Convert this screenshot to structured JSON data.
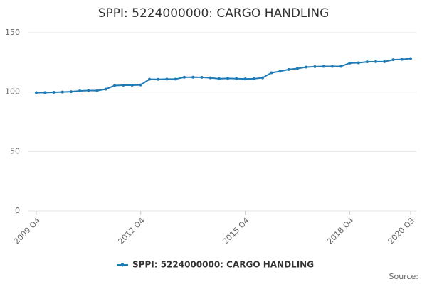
{
  "chart_data": {
    "type": "line",
    "title": "SPPI: 5224000000: CARGO HANDLING",
    "categories": [
      "2009 Q4",
      null,
      null,
      null,
      null,
      null,
      null,
      null,
      null,
      null,
      null,
      null,
      "2012 Q4",
      null,
      null,
      null,
      null,
      null,
      null,
      null,
      null,
      null,
      null,
      null,
      "2015 Q4",
      null,
      null,
      null,
      null,
      null,
      null,
      null,
      null,
      null,
      null,
      null,
      "2018 Q4",
      null,
      null,
      null,
      null,
      null,
      null,
      "2020 Q3"
    ],
    "series": [
      {
        "name": "SPPI: 5224000000: CARGO HANDLING",
        "color": "#1f7bb6",
        "values": [
          99.5,
          99.6,
          99.8,
          100,
          100.3,
          101,
          101.3,
          101.2,
          102.5,
          105.5,
          105.8,
          105.8,
          106,
          110.8,
          110.7,
          110.9,
          110.9,
          112.5,
          112.5,
          112.4,
          112,
          111.2,
          111.5,
          111.3,
          111.1,
          111.2,
          112,
          116.2,
          117.5,
          119,
          119.8,
          121,
          121.4,
          121.6,
          121.6,
          121.6,
          124.4,
          124.6,
          125.4,
          125.6,
          125.6,
          127.2,
          127.5,
          128.2
        ]
      }
    ],
    "ylim": [
      0,
      150
    ],
    "yticks": [
      0,
      50,
      100,
      150
    ],
    "grid": true,
    "source": "Source:"
  }
}
